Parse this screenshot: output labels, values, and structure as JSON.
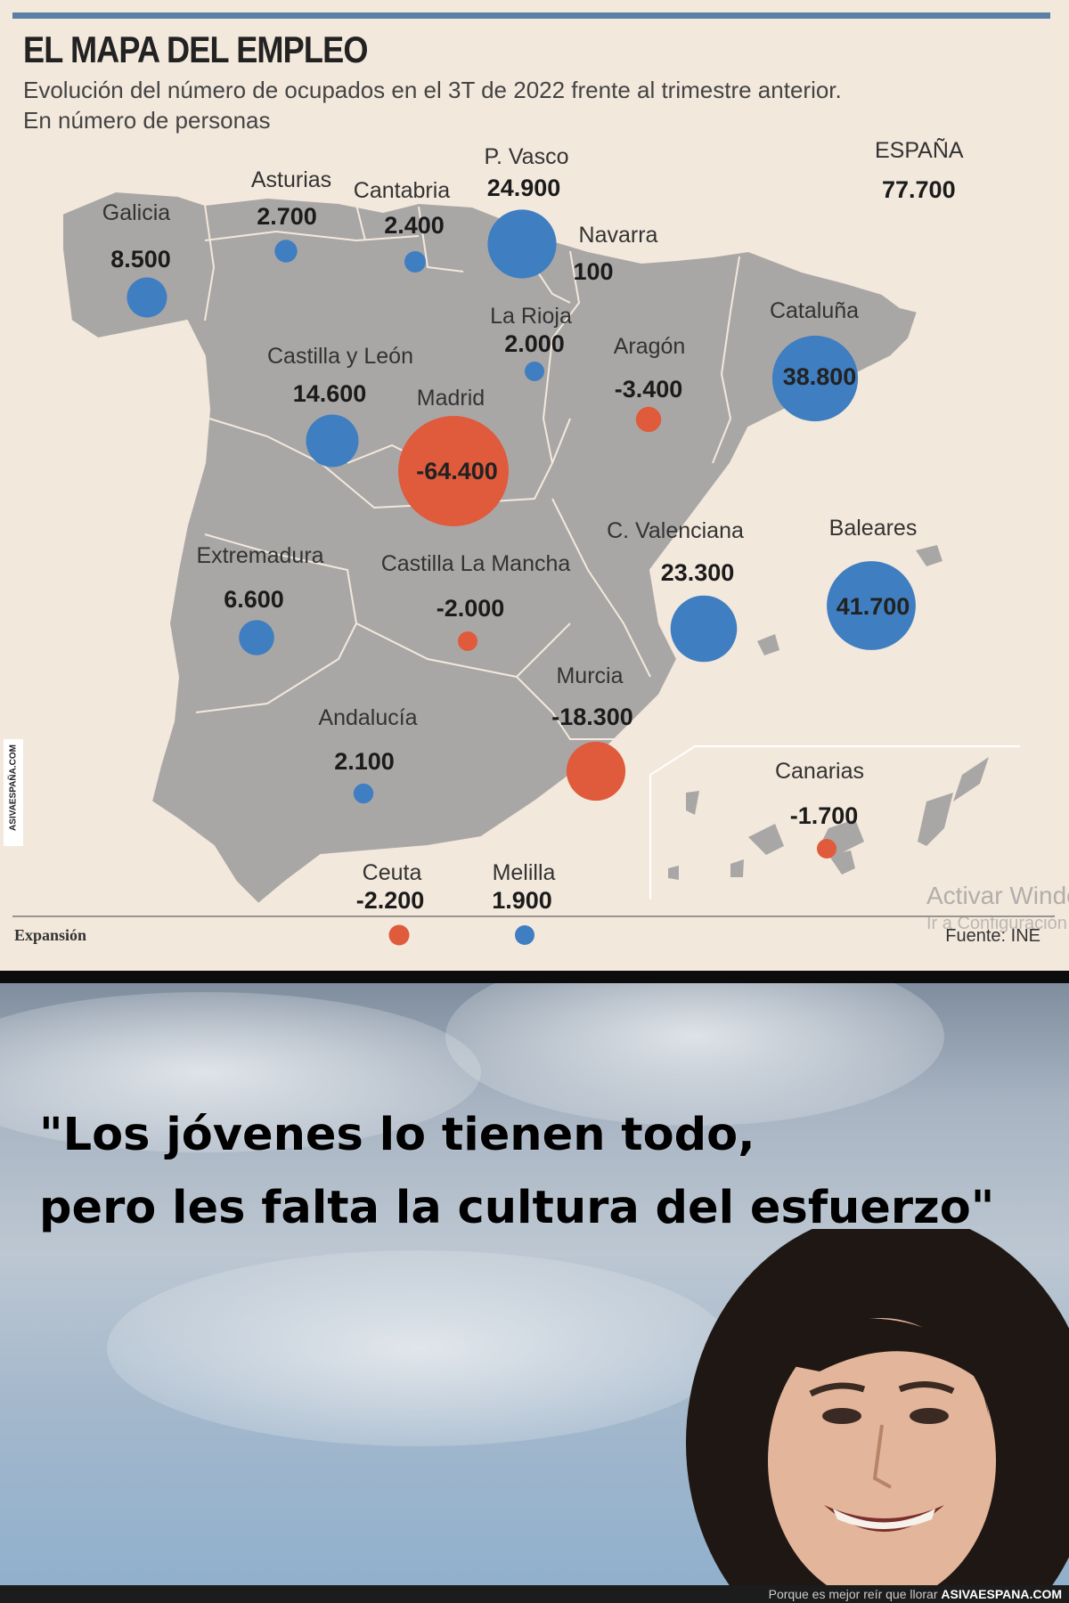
{
  "infographic": {
    "title": "EL MAPA DEL EMPLEO",
    "subtitle_line1": "Evolución del número de ocupados en el 3T de 2022 frente al trimestre anterior.",
    "subtitle_line2": "En número de personas",
    "national": {
      "label": "ESPAÑA",
      "value": "77.700"
    },
    "brand": "Expansión",
    "source": "Fuente: INE",
    "side_watermark": "ASIVAESPAÑA.COM",
    "windows_watermark": {
      "line1": "Activar Windows",
      "line2": "Ir a Configuración"
    },
    "colors": {
      "background": "#f3e8dc",
      "land": "#a9a7a6",
      "positive": "#3f7ec0",
      "negative": "#e05a3c"
    }
  },
  "regions": [
    {
      "name": "Galicia",
      "value": "8.500",
      "change": 8500
    },
    {
      "name": "Asturias",
      "value": "2.700",
      "change": 2700
    },
    {
      "name": "Cantabria",
      "value": "2.400",
      "change": 2400
    },
    {
      "name": "P. Vasco",
      "value": "24.900",
      "change": 24900
    },
    {
      "name": "Navarra",
      "value": "100",
      "change": 100
    },
    {
      "name": "La Rioja",
      "value": "2.000",
      "change": 2000
    },
    {
      "name": "Aragón",
      "value": "-3.400",
      "change": -3400
    },
    {
      "name": "Cataluña",
      "value": "38.800",
      "change": 38800
    },
    {
      "name": "Castilla y León",
      "value": "14.600",
      "change": 14600
    },
    {
      "name": "Madrid",
      "value": "-64.400",
      "change": -64400
    },
    {
      "name": "Extremadura",
      "value": "6.600",
      "change": 6600
    },
    {
      "name": "Castilla La Mancha",
      "value": "-2.000",
      "change": -2000
    },
    {
      "name": "C. Valenciana",
      "value": "23.300",
      "change": 23300
    },
    {
      "name": "Baleares",
      "value": "41.700",
      "change": 41700
    },
    {
      "name": "Murcia",
      "value": "-18.300",
      "change": -18300
    },
    {
      "name": "Andalucía",
      "value": "2.100",
      "change": 2100
    },
    {
      "name": "Canarias",
      "value": "-1.700",
      "change": -1700
    },
    {
      "name": "Ceuta",
      "value": "-2.200",
      "change": -2200
    },
    {
      "name": "Melilla",
      "value": "1.900",
      "change": 1900
    }
  ],
  "meme": {
    "quote_line1": "\"Los jóvenes lo tienen todo,",
    "quote_line2": "pero les falta la cultura del esfuerzo\""
  },
  "footer": {
    "tagline": "Porque es mejor reír que llorar",
    "site": "ASIVAESPANA.COM"
  }
}
